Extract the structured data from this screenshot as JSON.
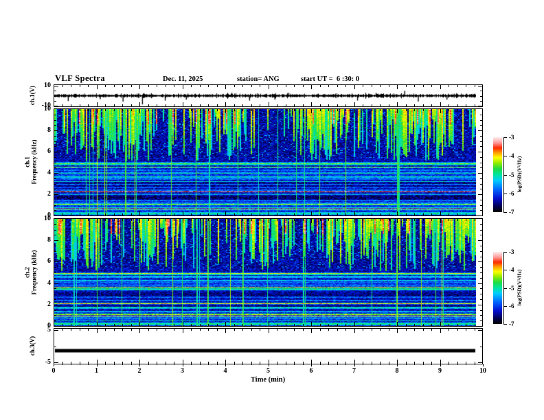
{
  "header": {
    "title": "VLF Spectra",
    "date": "Dec. 11, 2025",
    "station": "station= ANG",
    "start_ut": "start UT =  6 :30: 0"
  },
  "x_axis": {
    "label": "Time (min)",
    "tick_labels": [
      "0",
      "1",
      "2",
      "3",
      "4",
      "5",
      "6",
      "7",
      "8",
      "9",
      "10"
    ],
    "range_min": [
      0,
      10
    ],
    "minor_divisions_per_major": 5
  },
  "panels": {
    "ch1_wave": {
      "ylabel": "ch.1(V)",
      "ytick_labels": [
        "10",
        "-10"
      ],
      "ytick_values": [
        10,
        -10
      ],
      "ylim": [
        -11,
        11
      ]
    },
    "ch1_spec": {
      "ylabel_channel": "ch.1",
      "ylabel_axis": "Frequency (kHz)",
      "ytick_labels": [
        "0",
        "2",
        "4",
        "6",
        "8",
        "10"
      ],
      "ytick_values": [
        0,
        2,
        4,
        6,
        8,
        10
      ],
      "ylim": [
        0,
        10
      ]
    },
    "ch2_spec": {
      "ylabel_channel": "ch.2",
      "ylabel_axis": "Frequency (kHz)",
      "ytick_labels": [
        "0",
        "2",
        "4",
        "6",
        "8",
        "10"
      ],
      "ytick_values": [
        0,
        2,
        4,
        6,
        8,
        10
      ],
      "ylim": [
        0,
        10
      ]
    },
    "ch3_wave": {
      "ylabel": "ch.3(V)",
      "ytick_labels": [
        "5",
        "-5"
      ],
      "ytick_values": [
        5,
        -5
      ],
      "ylim": [
        -5.5,
        5.5
      ]
    }
  },
  "colorbar": {
    "label": "log(PSD)(V²/Hz)",
    "tick_labels": [
      "-3",
      "-4",
      "-5",
      "-6",
      "-7"
    ],
    "tick_values": [
      -3,
      -4,
      -5,
      -6,
      -7
    ],
    "range": [
      -7,
      -3
    ]
  },
  "colors": {
    "background": "#ffffff",
    "foreground": "#000000",
    "colormap_stops": [
      [
        0.0,
        "#000000"
      ],
      [
        0.07,
        "#000050"
      ],
      [
        0.18,
        "#0010d0"
      ],
      [
        0.3,
        "#0066ff"
      ],
      [
        0.42,
        "#00ccff"
      ],
      [
        0.5,
        "#00e6a0"
      ],
      [
        0.58,
        "#22dd44"
      ],
      [
        0.66,
        "#99ee00"
      ],
      [
        0.73,
        "#ffff00"
      ],
      [
        0.8,
        "#ff9900"
      ],
      [
        0.86,
        "#ff2a00"
      ],
      [
        0.93,
        "#ff9c9c"
      ],
      [
        1.0,
        "#ffeaea"
      ]
    ]
  },
  "chart_data": [
    {
      "panel": "ch1_waveform",
      "type": "line",
      "xlabel": "Time (min)",
      "xlim": [
        0,
        10
      ],
      "ylabel": "ch.1(V)",
      "ylim": [
        -10,
        10
      ],
      "data_end_min": 9.83,
      "description": "Band-limited noise trace centred on 0 V with impulsive sferic spikes",
      "noise_rms_v": 1.1,
      "seed": 911,
      "spikes_min_v": [
        [
          0.32,
          -5.5
        ],
        [
          1.08,
          -3.5
        ],
        [
          1.62,
          -6
        ],
        [
          2.08,
          -9
        ],
        [
          2.62,
          -5
        ],
        [
          3.12,
          -4
        ],
        [
          4.2,
          3.2
        ],
        [
          4.62,
          -5
        ],
        [
          5.22,
          -4
        ],
        [
          5.55,
          3
        ],
        [
          7.18,
          -5
        ],
        [
          7.62,
          3
        ],
        [
          8.3,
          5
        ],
        [
          8.62,
          -6
        ],
        [
          9.3,
          -4
        ]
      ]
    },
    {
      "panel": "ch1_spectrogram",
      "type": "heatmap",
      "xlim_min": [
        0,
        10
      ],
      "ylim_khz": [
        0,
        10
      ],
      "value_scale": "log(PSD)(V²/Hz)",
      "value_range": [
        -7,
        -3
      ],
      "seed": 101,
      "description": "VLF spectrogram: dense vertical sferic streaks above ~5.4 kHz, horizontal emission/hum lines below",
      "sferic_region_min_khz": 5.4,
      "streak_probability": 0.62,
      "bright_bands_khz": [
        {
          "f": 4.85,
          "hw": 0.13,
          "boost": 0.4
        },
        {
          "f": 4.55,
          "hw": 0.06,
          "boost": 0.28
        },
        {
          "f": 4.25,
          "hw": 0.05,
          "boost": 0.15
        },
        {
          "f": 3.62,
          "hw": 0.05,
          "boost": 0.28
        },
        {
          "f": 2.36,
          "hw": 0.05,
          "boost": 0.22
        },
        {
          "f": 2.06,
          "hw": 0.04,
          "boost": 0.18
        },
        {
          "f": 1.06,
          "hw": 0.04,
          "boost": 0.26
        },
        {
          "f": 0.72,
          "hw": 0.04,
          "boost": 0.22
        },
        {
          "f": 0.15,
          "hw": 0.14,
          "boost": 0.3
        }
      ],
      "dark_bands_khz": [
        {
          "f": 3.0,
          "hw": 0.4,
          "boost": -0.1
        },
        {
          "f": 1.6,
          "hw": 0.28,
          "boost": -0.09
        },
        {
          "f": 0.45,
          "hw": 0.12,
          "boost": -0.07
        }
      ],
      "n_thin_lines": 26,
      "n_vertical_lines": 22
    },
    {
      "panel": "ch2_spectrogram",
      "type": "heatmap",
      "xlim_min": [
        0,
        10
      ],
      "ylim_khz": [
        0,
        10
      ],
      "value_scale": "log(PSD)(V²/Hz)",
      "value_range": [
        -7,
        -3
      ],
      "seed": 202,
      "description": "VLF spectrogram channel 2, same structure as channel 1",
      "sferic_region_min_khz": 5.4,
      "streak_probability": 0.66,
      "bright_bands_khz": [
        {
          "f": 4.85,
          "hw": 0.12,
          "boost": 0.36
        },
        {
          "f": 4.55,
          "hw": 0.06,
          "boost": 0.26
        },
        {
          "f": 3.62,
          "hw": 0.05,
          "boost": 0.26
        },
        {
          "f": 2.36,
          "hw": 0.05,
          "boost": 0.22
        },
        {
          "f": 2.06,
          "hw": 0.04,
          "boost": 0.18
        },
        {
          "f": 1.06,
          "hw": 0.04,
          "boost": 0.26
        },
        {
          "f": 0.72,
          "hw": 0.04,
          "boost": 0.22
        },
        {
          "f": 0.15,
          "hw": 0.14,
          "boost": 0.34
        }
      ],
      "dark_bands_khz": [
        {
          "f": 3.0,
          "hw": 0.4,
          "boost": -0.1
        },
        {
          "f": 1.6,
          "hw": 0.28,
          "boost": -0.09
        },
        {
          "f": 0.45,
          "hw": 0.12,
          "boost": -0.07
        }
      ],
      "n_thin_lines": 26,
      "n_vertical_lines": 22
    },
    {
      "panel": "ch3_waveform",
      "type": "line",
      "xlim": [
        0,
        10
      ],
      "ylabel": "ch.3(V)",
      "ylim": [
        -5,
        5
      ],
      "data_end_min": 9.83,
      "description": "Flat DC level",
      "constant_value_v": -1.4,
      "line_thickness_px": 5
    }
  ]
}
